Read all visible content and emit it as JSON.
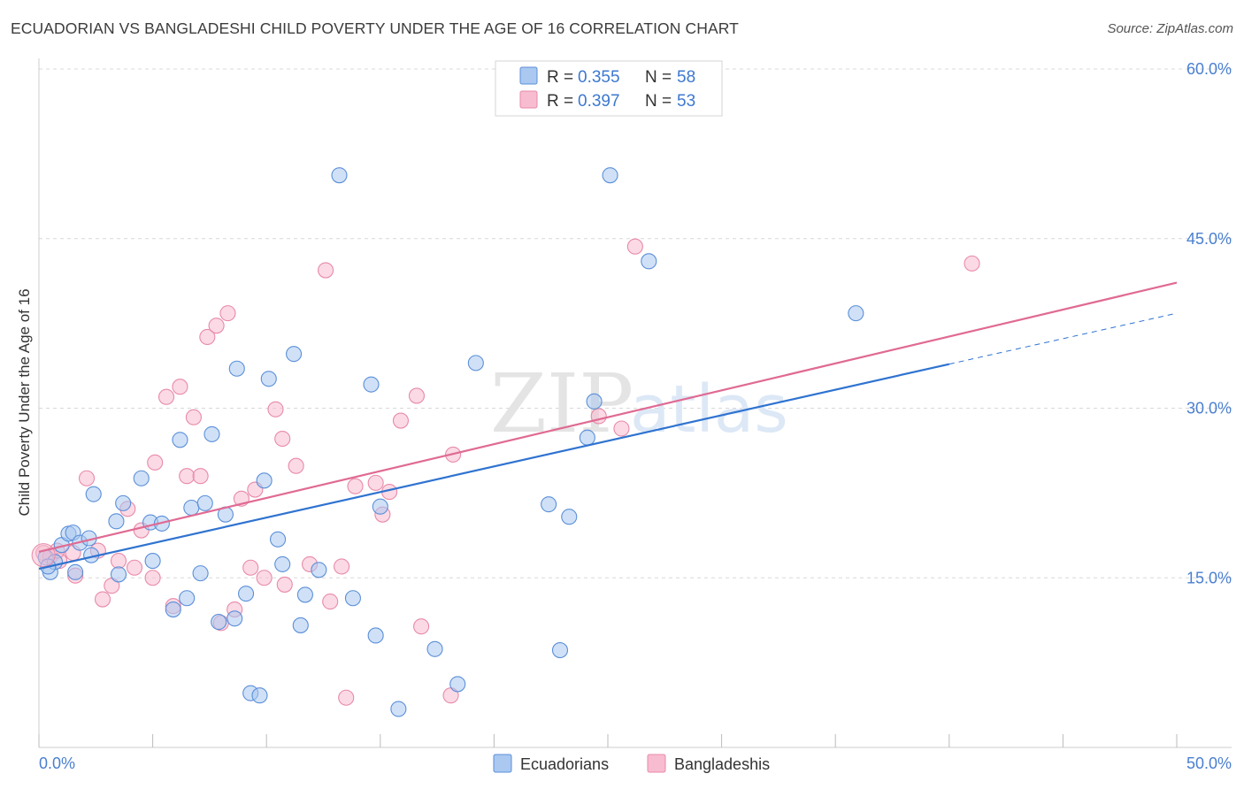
{
  "title": "ECUADORIAN VS BANGLADESHI CHILD POVERTY UNDER THE AGE OF 16 CORRELATION CHART",
  "source": "Source: ZipAtlas.com",
  "watermark": {
    "bold": "ZIP",
    "light": "atlas"
  },
  "legend": {
    "r_label": "R =",
    "n_label": "N =",
    "items": [
      {
        "r": "0.355",
        "n": "58"
      },
      {
        "r": "0.397",
        "n": "53"
      }
    ]
  },
  "bottom_legend": [
    "Ecuadorians",
    "Bangladeshis"
  ],
  "colors": {
    "blue_fill": "#aac8f0",
    "blue_stroke": "#5b8fd8",
    "blue_line": "#2f73d0",
    "pink_fill": "#f7bccf",
    "pink_stroke": "#e88aa8",
    "pink_line": "#e06a93",
    "tick_text": "#4a7fd0",
    "grid": "#d8d8d8"
  },
  "chart_data": {
    "type": "scatter",
    "title": "ECUADORIAN VS BANGLADESHI CHILD POVERTY UNDER THE AGE OF 16 CORRELATION CHART",
    "xlabel": "",
    "ylabel": "Child Poverty Under the Age of 16",
    "xlim": [
      0,
      50
    ],
    "ylim": [
      0,
      60
    ],
    "x_tick_labels": [
      "0.0%",
      "50.0%"
    ],
    "y_ticks": [
      15,
      30,
      45,
      60
    ],
    "y_tick_labels": [
      "15.0%",
      "30.0%",
      "45.0%",
      "60.0%"
    ],
    "grid": true,
    "legend_position": "top-center",
    "series": [
      {
        "name": "Ecuadorians",
        "r": 0.355,
        "n": 58,
        "trend": {
          "x": [
            0,
            40
          ],
          "y": [
            15.8,
            33.9
          ],
          "dashed_to": [
            50,
            38.4
          ]
        },
        "points": [
          [
            0.3,
            16.8
          ],
          [
            0.5,
            15.5
          ],
          [
            0.7,
            16.4
          ],
          [
            1.0,
            17.9
          ],
          [
            1.3,
            18.9
          ],
          [
            1.5,
            19.0
          ],
          [
            1.8,
            18.1
          ],
          [
            2.2,
            18.5
          ],
          [
            2.3,
            17.0
          ],
          [
            1.6,
            15.5
          ],
          [
            2.4,
            22.4
          ],
          [
            3.4,
            20.0
          ],
          [
            3.7,
            21.6
          ],
          [
            4.5,
            23.8
          ],
          [
            4.9,
            19.9
          ],
          [
            5.0,
            16.5
          ],
          [
            5.4,
            19.8
          ],
          [
            5.9,
            12.2
          ],
          [
            6.2,
            27.2
          ],
          [
            6.5,
            13.2
          ],
          [
            6.7,
            21.2
          ],
          [
            7.1,
            15.4
          ],
          [
            7.3,
            21.6
          ],
          [
            7.6,
            27.7
          ],
          [
            7.9,
            11.1
          ],
          [
            8.2,
            20.6
          ],
          [
            8.6,
            11.4
          ],
          [
            8.7,
            33.5
          ],
          [
            9.1,
            13.6
          ],
          [
            9.3,
            4.8
          ],
          [
            9.7,
            4.6
          ],
          [
            9.9,
            23.6
          ],
          [
            10.1,
            32.6
          ],
          [
            10.5,
            18.4
          ],
          [
            10.7,
            16.2
          ],
          [
            11.2,
            34.8
          ],
          [
            11.5,
            10.8
          ],
          [
            11.7,
            13.5
          ],
          [
            12.3,
            15.7
          ],
          [
            13.2,
            50.6
          ],
          [
            13.8,
            13.2
          ],
          [
            14.6,
            32.1
          ],
          [
            14.8,
            9.9
          ],
          [
            15.0,
            21.3
          ],
          [
            15.8,
            3.4
          ],
          [
            17.4,
            8.7
          ],
          [
            18.4,
            5.6
          ],
          [
            19.2,
            34.0
          ],
          [
            22.4,
            21.5
          ],
          [
            22.9,
            8.6
          ],
          [
            23.3,
            20.4
          ],
          [
            24.1,
            27.4
          ],
          [
            24.4,
            30.6
          ],
          [
            25.1,
            50.6
          ],
          [
            26.8,
            43.0
          ],
          [
            35.9,
            38.4
          ],
          [
            0.4,
            16.0
          ],
          [
            3.5,
            15.3
          ]
        ]
      },
      {
        "name": "Bangladeshis",
        "r": 0.397,
        "n": 53,
        "trend": {
          "x": [
            0,
            50
          ],
          "y": [
            17.3,
            41.1
          ]
        },
        "points": [
          [
            0.2,
            17.2
          ],
          [
            0.5,
            16.9
          ],
          [
            0.9,
            16.5
          ],
          [
            1.5,
            17.2
          ],
          [
            1.6,
            15.2
          ],
          [
            2.1,
            23.8
          ],
          [
            2.6,
            17.4
          ],
          [
            2.8,
            13.1
          ],
          [
            3.2,
            14.3
          ],
          [
            3.5,
            16.5
          ],
          [
            3.9,
            21.1
          ],
          [
            4.2,
            15.9
          ],
          [
            4.5,
            19.2
          ],
          [
            5.0,
            15.0
          ],
          [
            5.1,
            25.2
          ],
          [
            5.6,
            31.0
          ],
          [
            5.9,
            12.5
          ],
          [
            6.2,
            31.9
          ],
          [
            6.5,
            24.0
          ],
          [
            6.8,
            29.2
          ],
          [
            7.1,
            24.0
          ],
          [
            7.4,
            36.3
          ],
          [
            7.8,
            37.3
          ],
          [
            8.0,
            11.0
          ],
          [
            8.3,
            38.4
          ],
          [
            8.6,
            12.2
          ],
          [
            8.9,
            22.0
          ],
          [
            9.3,
            15.9
          ],
          [
            9.5,
            22.8
          ],
          [
            9.9,
            15.0
          ],
          [
            10.4,
            29.9
          ],
          [
            10.7,
            27.3
          ],
          [
            10.8,
            14.4
          ],
          [
            11.3,
            24.9
          ],
          [
            11.9,
            16.2
          ],
          [
            12.6,
            42.2
          ],
          [
            12.8,
            12.9
          ],
          [
            13.3,
            16.0
          ],
          [
            13.5,
            4.4
          ],
          [
            13.9,
            23.1
          ],
          [
            14.8,
            23.4
          ],
          [
            15.1,
            20.6
          ],
          [
            15.4,
            22.6
          ],
          [
            15.9,
            28.9
          ],
          [
            16.6,
            31.1
          ],
          [
            16.8,
            10.7
          ],
          [
            18.1,
            4.6
          ],
          [
            18.2,
            25.9
          ],
          [
            24.6,
            29.3
          ],
          [
            25.6,
            28.2
          ],
          [
            26.2,
            44.3
          ],
          [
            41.0,
            42.8
          ],
          [
            0.8,
            17.4
          ]
        ]
      }
    ]
  }
}
